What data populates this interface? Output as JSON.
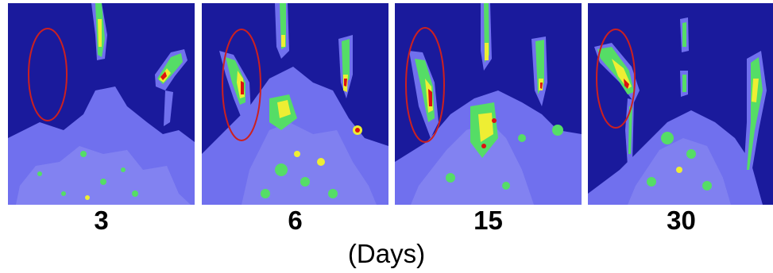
{
  "panels": [
    {
      "label": "3"
    },
    {
      "label": "6"
    },
    {
      "label": "15"
    },
    {
      "label": "30"
    }
  ],
  "unit_label": "(Days)",
  "colors": {
    "background": "#1a1a9c",
    "low": "#7070ee",
    "mid": "#55dd66",
    "high": "#eeee33",
    "peak": "#dd1111",
    "highlight_ring": "#cc2020"
  }
}
